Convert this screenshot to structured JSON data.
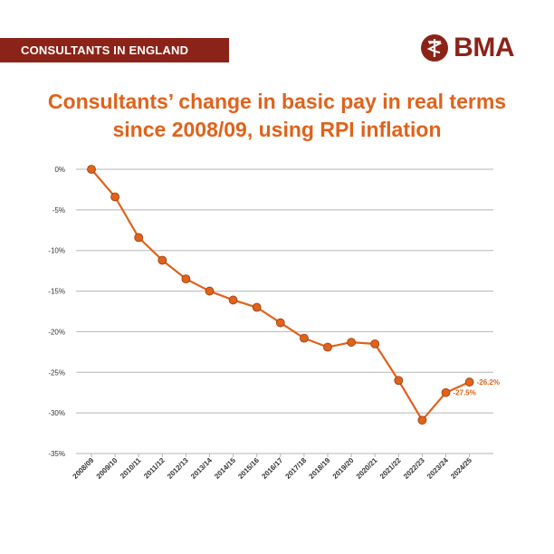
{
  "banner": {
    "label": "CONSULTANTS IN ENGLAND"
  },
  "logo": {
    "text": "BMA"
  },
  "colors": {
    "brand": "#8c2318",
    "accent": "#e0621b",
    "grid": "#b5b5b5"
  },
  "chart_data": {
    "type": "line",
    "title": "Consultants’ change in basic pay in real terms since 2008/09, using RPI inflation",
    "title_lines": [
      "Consultants’ change in basic pay in real terms",
      "since 2008/09, using RPI inflation"
    ],
    "xlabel": "",
    "ylabel": "",
    "categories": [
      "2008/09",
      "2009/10",
      "2010/11",
      "2011/12",
      "2012/13",
      "2013/14",
      "2014/15",
      "2015/16",
      "2016/17",
      "2017/18",
      "2018/19",
      "2019/20",
      "2020/21",
      "2021/22",
      "2022/23",
      "2023/24",
      "2024/25"
    ],
    "values": [
      0,
      -3.4,
      -8.4,
      -11.2,
      -13.5,
      -15.0,
      -16.1,
      -17.0,
      -18.9,
      -20.8,
      -21.9,
      -21.3,
      -21.5,
      -26.0,
      -30.9,
      -27.5,
      -26.2
    ],
    "ylim": [
      -35,
      0
    ],
    "yticks": [
      0,
      -5,
      -10,
      -15,
      -20,
      -25,
      -30,
      -35
    ],
    "ytick_labels": [
      "0%",
      "-5%",
      "-10%",
      "-15%",
      "-20%",
      "-25%",
      "-30%",
      "-35%"
    ],
    "grid": true,
    "data_labels": [
      {
        "index": 15,
        "text": "-27.5%"
      },
      {
        "index": 16,
        "text": "-26.2%"
      }
    ]
  }
}
